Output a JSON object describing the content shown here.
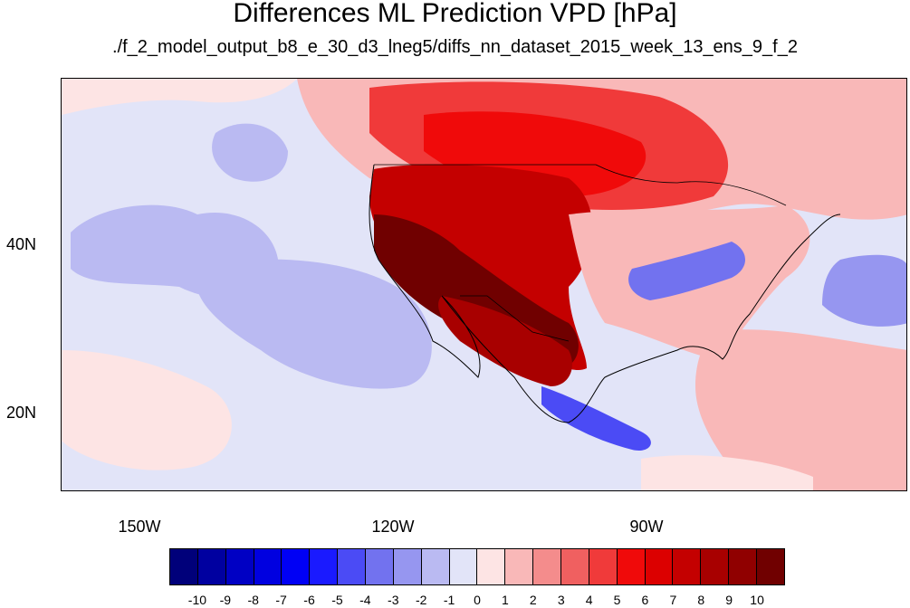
{
  "title": "Differences ML Prediction VPD [hPa]",
  "subtitle": "./f_2_model_output_b8_e_30_d3_lneg5/diffs_nn_dataset_2015_week_13_ens_9_f_2",
  "map": {
    "projection": "cylindrical equidistant",
    "lon_range": [
      -160,
      -60
    ],
    "lat_range": [
      10,
      60
    ],
    "field": "VPD difference",
    "units": "hPa",
    "lon_ticks": [
      "150W",
      "120W",
      "90W"
    ],
    "lat_ticks": [
      "40N",
      "20N"
    ]
  },
  "colorbar": {
    "labels": [
      "-10",
      "-9",
      "-8",
      "-7",
      "-6",
      "-5",
      "-4",
      "-3",
      "-2",
      "-1",
      "0",
      "1",
      "2",
      "3",
      "4",
      "5",
      "6",
      "7",
      "8",
      "9",
      "10"
    ],
    "colors": [
      "#00007a",
      "#0000a0",
      "#0000c4",
      "#0000e0",
      "#0000f5",
      "#1a1aff",
      "#4b4bf5",
      "#7272ef",
      "#9696f0",
      "#babaf2",
      "#e2e4f8",
      "#fde4e4",
      "#f9b8b8",
      "#f48c8c",
      "#f06060",
      "#f03a3a",
      "#f00a0a",
      "#dc0000",
      "#c40000",
      "#a80000",
      "#900000",
      "#700000"
    ]
  }
}
